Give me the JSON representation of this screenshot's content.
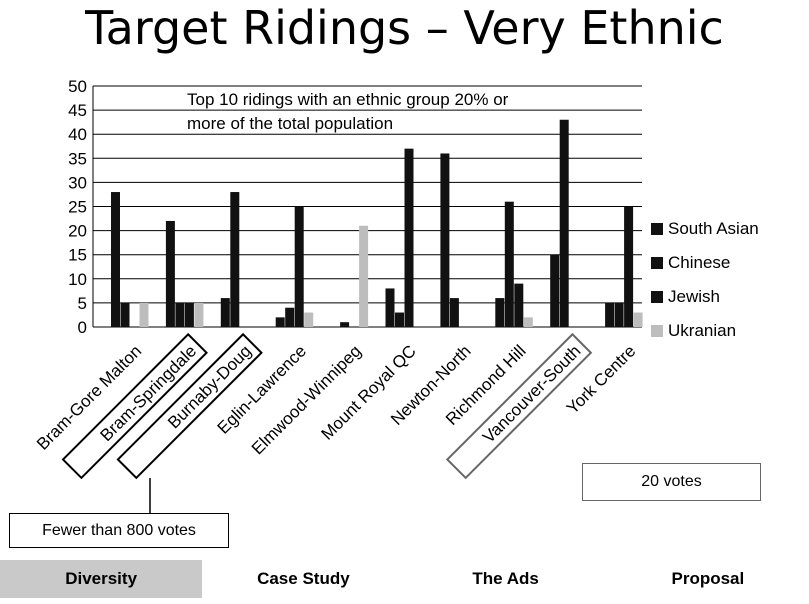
{
  "slide": {
    "title": "Target Ridings – Very Ethnic"
  },
  "notes": {
    "fewer_than": "Fewer than 800 votes",
    "twenty_votes": "20 votes"
  },
  "nav": {
    "tabs": [
      {
        "label": "Diversity",
        "active": true
      },
      {
        "label": "Case Study",
        "active": false
      },
      {
        "label": "The Ads",
        "active": false
      },
      {
        "label": "Proposal",
        "active": false
      }
    ]
  },
  "chart_data": {
    "type": "bar",
    "title": "",
    "annotation": [
      "Top 10 ridings with an ethnic group 20% or",
      "more of the total population"
    ],
    "categories": [
      "Bram-Gore Malton",
      "Bram-Springdale",
      "Burnaby-Doug",
      "Eglin-Lawrence",
      "Elmwood-Winnipeg",
      "Mount Royal QC",
      "Newton-North",
      "Richmond Hill",
      "Vancouver-South",
      "York Centre"
    ],
    "highlighted_categories": [
      "Bram-Springdale",
      "Burnaby-Doug",
      "Vancouver-South"
    ],
    "series": [
      {
        "name": "South Asian",
        "color": "#111111",
        "values": [
          28,
          22,
          6,
          2,
          0,
          8,
          36,
          6,
          15,
          5
        ]
      },
      {
        "name": "Chinese",
        "color": "#111111",
        "values": [
          5,
          5,
          28,
          4,
          1,
          3,
          6,
          26,
          43,
          5
        ]
      },
      {
        "name": "Jewish",
        "color": "#111111",
        "values": [
          0,
          5,
          0,
          25,
          0,
          37,
          0,
          9,
          0,
          25
        ]
      },
      {
        "name": "Ukranian",
        "color": "#bdbdbd",
        "values": [
          5,
          5,
          0,
          3,
          21,
          0,
          0,
          2,
          0,
          3
        ]
      }
    ],
    "ylim": [
      0,
      50
    ],
    "yticks": [
      0,
      5,
      10,
      15,
      20,
      25,
      30,
      35,
      40,
      45,
      50
    ],
    "grid": true,
    "legend_position": "right"
  }
}
